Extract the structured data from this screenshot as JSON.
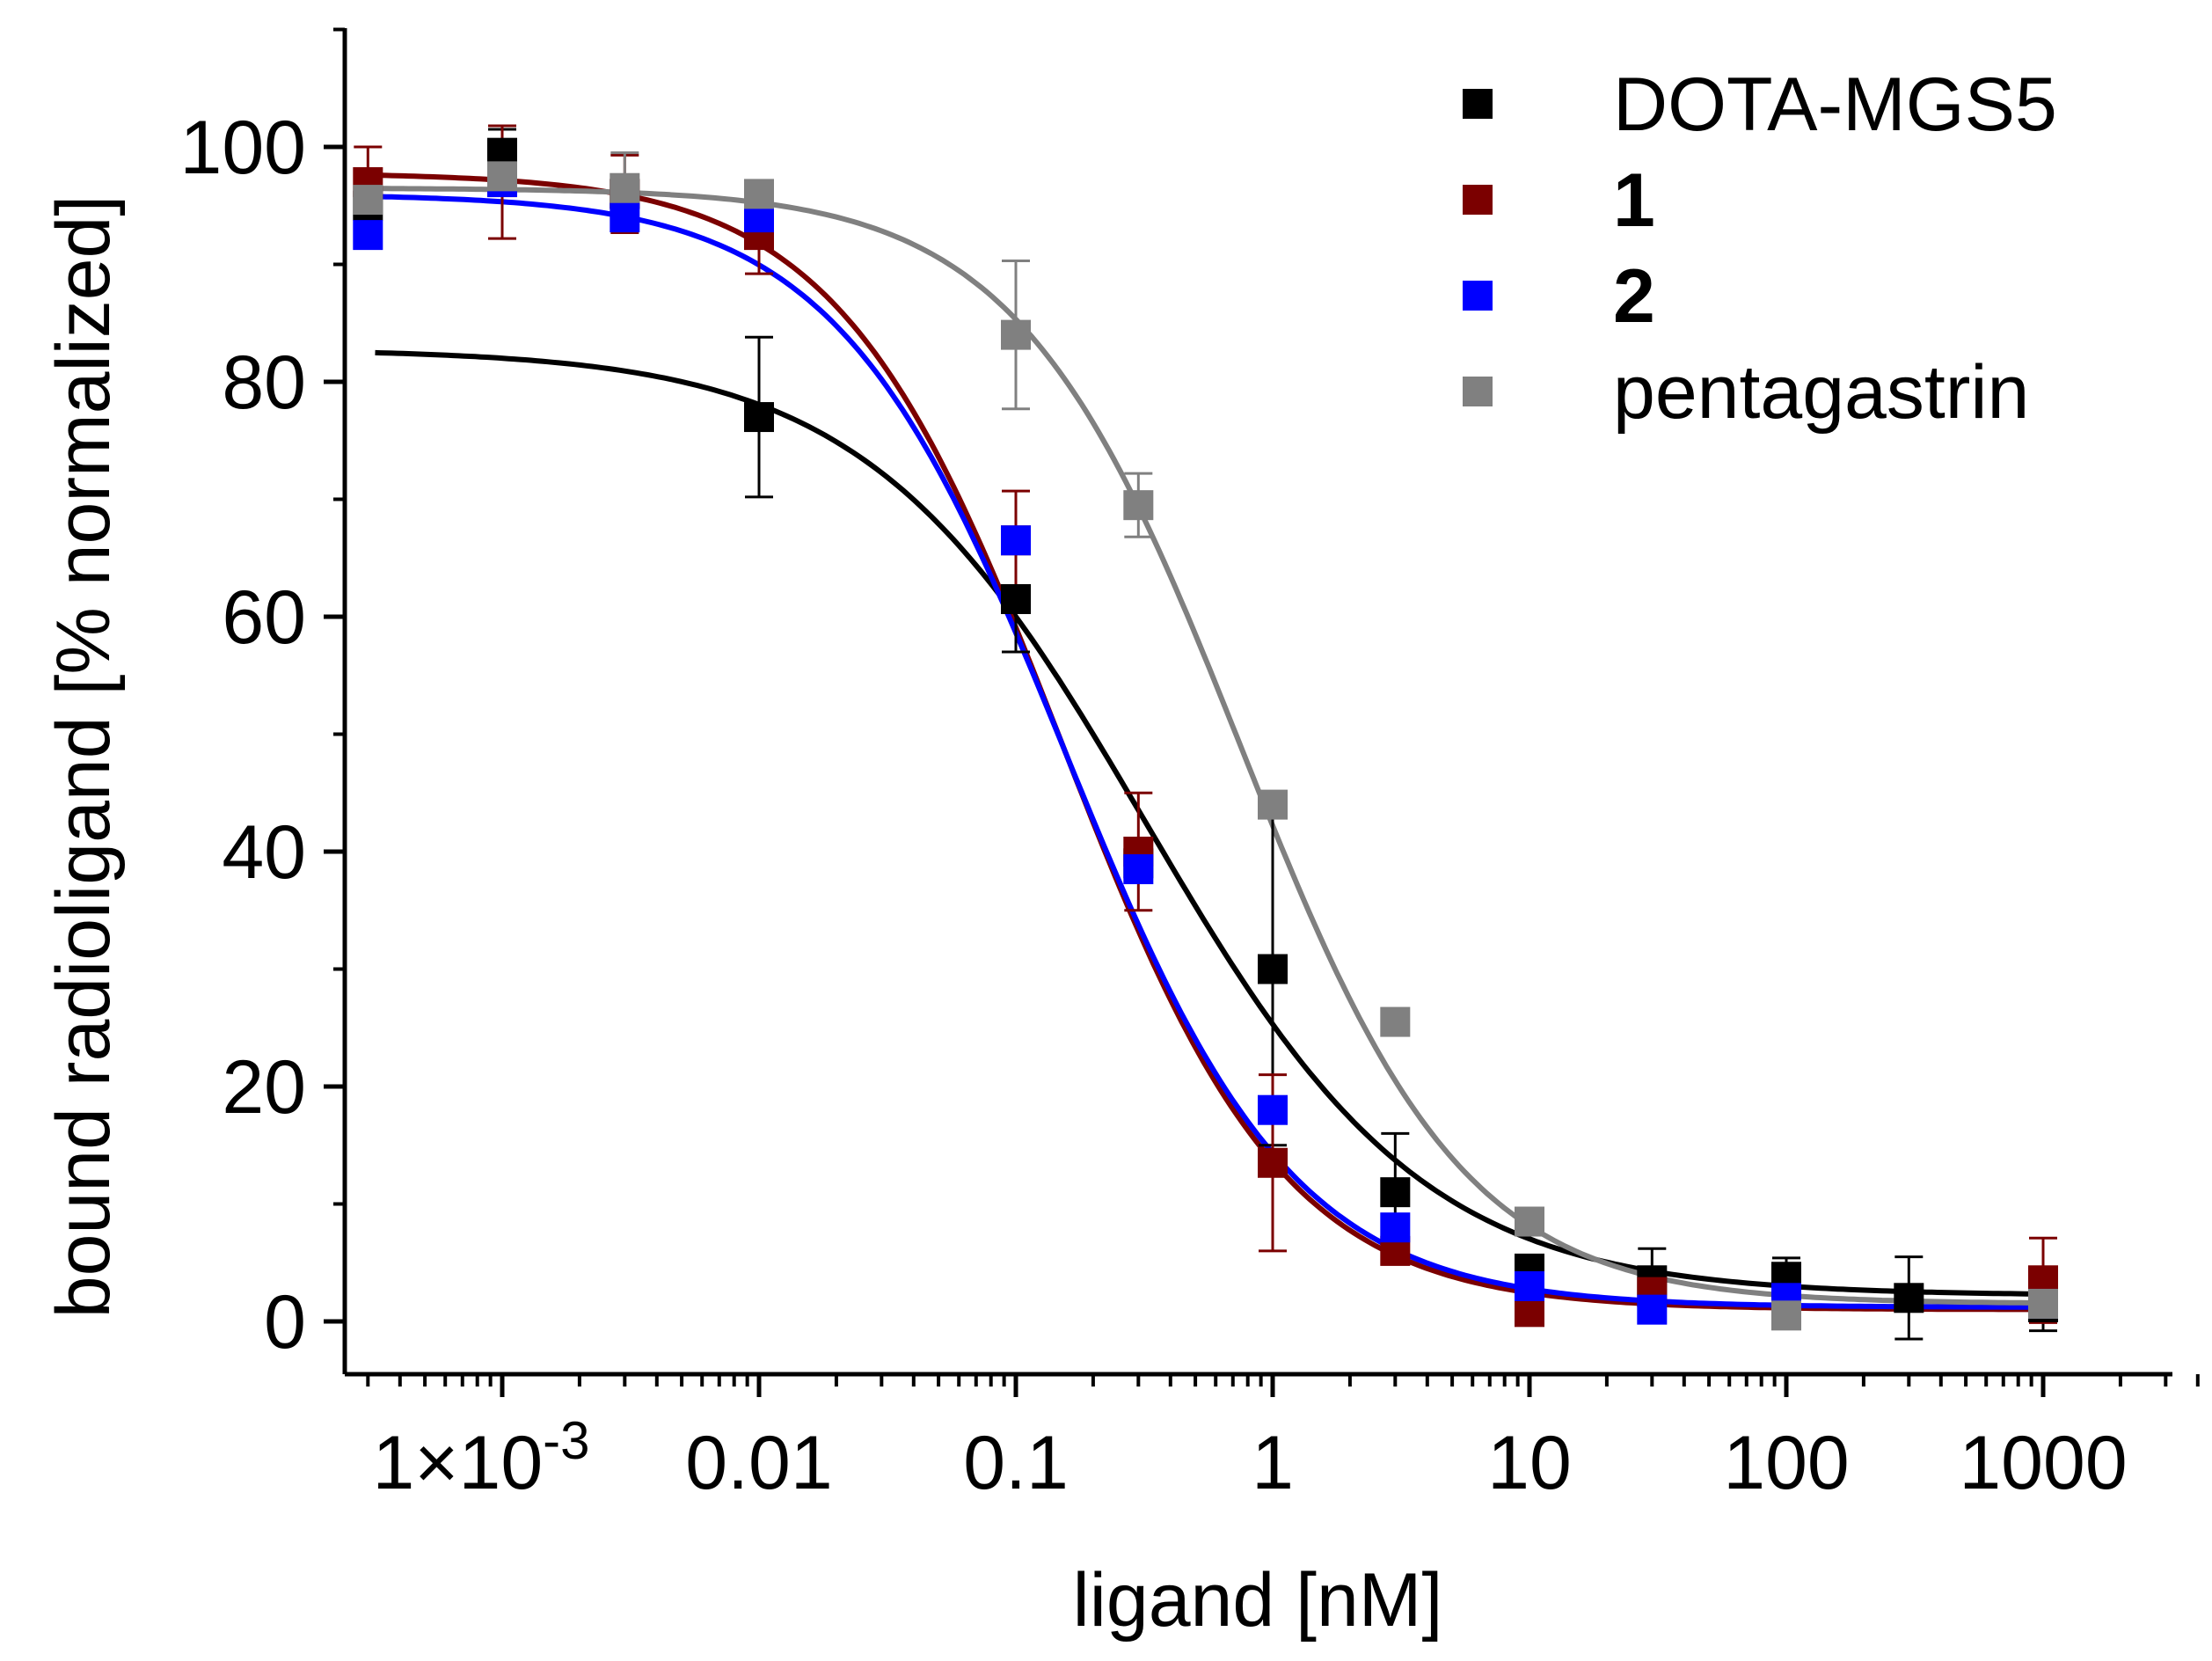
{
  "chart_data": {
    "type": "scatter",
    "title": "",
    "xlabel": "ligand [nM]",
    "ylabel": "bound radioligand [% normalized]",
    "xscale": "log",
    "xlim": [
      0.00025,
      4000
    ],
    "ylim": [
      -5,
      110
    ],
    "x_tick_values": [
      0.001,
      0.01,
      0.1,
      1,
      10,
      100,
      1000
    ],
    "x_tick_labels": [
      "1×10",
      "0.01",
      "0.1",
      "1",
      "10",
      "100",
      "1000"
    ],
    "x_tick_first_exponent": "-3",
    "y_tick_values": [
      0,
      20,
      40,
      60,
      80,
      100
    ],
    "y_tick_labels": [
      "0",
      "20",
      "40",
      "60",
      "80",
      "100"
    ],
    "legend_position": "top-right",
    "series": [
      {
        "name": "DOTA-MGS5",
        "bold": false,
        "color": "#000000",
        "x": [
          0.0003,
          0.001,
          0.003,
          0.01,
          0.1,
          0.3,
          1,
          3,
          10,
          30,
          100,
          300,
          1000
        ],
        "y": [
          95,
          99.5,
          96,
          77,
          61.5,
          39,
          30,
          11,
          4.5,
          3.5,
          3.8,
          2,
          1.2
        ],
        "error": [
          0,
          2,
          0,
          6.8,
          4.5,
          0,
          15,
          5,
          0,
          2.7,
          1.6,
          3.5,
          2
        ],
        "fit": {
          "top": 82.8,
          "bottom": 2.2,
          "ic50": 0.32,
          "hill": 0.8
        }
      },
      {
        "name": "1",
        "bold": true,
        "color": "#7b0000",
        "x": [
          0.0003,
          0.001,
          0.003,
          0.01,
          0.1,
          0.3,
          1,
          3,
          10,
          30,
          100,
          1000
        ],
        "y": [
          97,
          97,
          96,
          92.5,
          66.5,
          40,
          13.5,
          6,
          0.8,
          2.5,
          1.5,
          3.5
        ],
        "error": [
          3,
          4.8,
          3.3,
          3.3,
          4.2,
          5,
          7.5,
          1,
          0,
          1.5,
          1,
          3.6
        ],
        "fit": {
          "top": 97.8,
          "bottom": 1,
          "ic50": 0.15,
          "hill": 1.0
        }
      },
      {
        "name": "2",
        "bold": true,
        "color": "#0000ff",
        "x": [
          0.0003,
          0.001,
          0.003,
          0.01,
          0.1,
          0.3,
          1,
          3,
          10,
          30,
          100,
          1000
        ],
        "y": [
          92.5,
          97,
          94,
          94,
          66.5,
          38.5,
          18,
          8,
          3,
          1,
          2,
          1.5
        ],
        "error": [
          0,
          0,
          0,
          0,
          0,
          0,
          0,
          0,
          0,
          0,
          0,
          0
        ],
        "fit": {
          "top": 96,
          "bottom": 1.2,
          "ic50": 0.155,
          "hill": 0.98
        }
      },
      {
        "name": "pentagastrin",
        "bold": false,
        "color": "#808080",
        "x": [
          0.0003,
          0.001,
          0.003,
          0.01,
          0.1,
          0.3,
          1,
          3,
          10,
          100,
          1000
        ],
        "y": [
          95.5,
          97.5,
          96.5,
          96,
          84,
          69.5,
          44,
          25.5,
          8.5,
          0.5,
          1.5
        ],
        "error": [
          0,
          0,
          3,
          0,
          6.3,
          2.7,
          0,
          0,
          0,
          0,
          0
        ],
        "fit": {
          "top": 96.5,
          "bottom": 1.5,
          "ic50": 0.75,
          "hill": 1.0
        }
      }
    ]
  }
}
